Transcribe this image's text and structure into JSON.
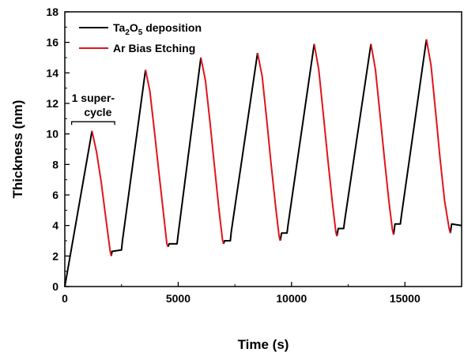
{
  "chart_data": {
    "type": "line",
    "title": "",
    "xlabel": "Time (s)",
    "ylabel": "Thickness (nm)",
    "xlim": [
      0,
      17500
    ],
    "ylim": [
      0,
      18
    ],
    "xticks": [
      0,
      5000,
      10000,
      15000
    ],
    "yticks": [
      0,
      2,
      4,
      6,
      8,
      10,
      12,
      14,
      16,
      18
    ],
    "legend": {
      "placement": "top-left",
      "entries": [
        {
          "base": "Ta",
          "sub1": "2",
          "mid": "O",
          "sub2": "5",
          "rest": " deposition",
          "color": "#000000"
        },
        {
          "text": "Ar Bias Etching",
          "color": "#e0141c"
        }
      ]
    },
    "annotation": {
      "line1": "1 super-",
      "line2": "cycle",
      "x_range": [
        300,
        2200
      ],
      "y": 10.8
    },
    "series": [
      {
        "name": "Ta2O5 deposition",
        "color": "#000000",
        "segments": [
          [
            [
              0,
              0
            ],
            [
              1200,
              10.2
            ]
          ],
          [
            [
              2050,
              2.0
            ],
            [
              2080,
              2.3
            ],
            [
              2500,
              2.4
            ],
            [
              2540,
              3.0
            ],
            [
              3560,
              14.2
            ]
          ],
          [
            [
              4550,
              2.6
            ],
            [
              4600,
              2.8
            ],
            [
              4950,
              2.8
            ],
            [
              4990,
              3.3
            ],
            [
              6000,
              15.0
            ]
          ],
          [
            [
              7000,
              2.8
            ],
            [
              7050,
              3.0
            ],
            [
              7300,
              3.0
            ],
            [
              7340,
              3.6
            ],
            [
              8500,
              15.3
            ]
          ],
          [
            [
              9500,
              3.0
            ],
            [
              9560,
              3.5
            ],
            [
              9800,
              3.5
            ],
            [
              9840,
              4.0
            ],
            [
              11000,
              15.9
            ]
          ],
          [
            [
              12000,
              3.3
            ],
            [
              12060,
              3.8
            ],
            [
              12300,
              3.8
            ],
            [
              12340,
              4.3
            ],
            [
              13500,
              15.9
            ]
          ],
          [
            [
              14500,
              3.4
            ],
            [
              14560,
              4.1
            ],
            [
              14800,
              4.1
            ],
            [
              14840,
              4.6
            ],
            [
              15950,
              16.2
            ]
          ],
          [
            [
              17000,
              3.5
            ],
            [
              17060,
              4.1
            ],
            [
              17500,
              4.0
            ]
          ]
        ]
      },
      {
        "name": "Ar Bias Etching",
        "color": "#e0141c",
        "segments": [
          [
            [
              1200,
              10.2
            ],
            [
              1400,
              8.8
            ],
            [
              1600,
              6.9
            ],
            [
              1800,
              4.6
            ],
            [
              2000,
              2.3
            ],
            [
              2050,
              2.0
            ]
          ],
          [
            [
              3560,
              14.2
            ],
            [
              3750,
              12.8
            ],
            [
              3950,
              10.2
            ],
            [
              4150,
              7.5
            ],
            [
              4350,
              4.8
            ],
            [
              4500,
              2.8
            ],
            [
              4550,
              2.6
            ]
          ],
          [
            [
              6000,
              15.0
            ],
            [
              6200,
              13.5
            ],
            [
              6400,
              10.8
            ],
            [
              6600,
              7.9
            ],
            [
              6800,
              5.0
            ],
            [
              6950,
              3.1
            ],
            [
              7000,
              2.8
            ]
          ],
          [
            [
              8500,
              15.3
            ],
            [
              8700,
              13.8
            ],
            [
              8900,
              11.0
            ],
            [
              9100,
              8.0
            ],
            [
              9300,
              5.2
            ],
            [
              9450,
              3.3
            ],
            [
              9500,
              3.0
            ]
          ],
          [
            [
              11000,
              15.9
            ],
            [
              11200,
              14.2
            ],
            [
              11400,
              11.3
            ],
            [
              11600,
              8.3
            ],
            [
              11800,
              5.5
            ],
            [
              11950,
              3.6
            ],
            [
              12000,
              3.3
            ]
          ],
          [
            [
              13500,
              15.9
            ],
            [
              13700,
              14.2
            ],
            [
              13900,
              11.3
            ],
            [
              14100,
              8.3
            ],
            [
              14300,
              5.5
            ],
            [
              14450,
              3.7
            ],
            [
              14500,
              3.4
            ]
          ],
          [
            [
              15950,
              16.2
            ],
            [
              16150,
              14.5
            ],
            [
              16350,
              11.5
            ],
            [
              16550,
              8.4
            ],
            [
              16750,
              5.6
            ],
            [
              16950,
              3.8
            ],
            [
              17000,
              3.5
            ]
          ]
        ]
      }
    ]
  }
}
